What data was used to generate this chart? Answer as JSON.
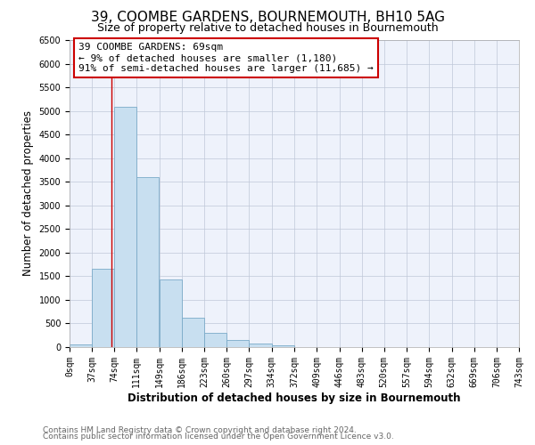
{
  "title": "39, COOMBE GARDENS, BOURNEMOUTH, BH10 5AG",
  "subtitle": "Size of property relative to detached houses in Bournemouth",
  "xlabel": "Distribution of detached houses by size in Bournemouth",
  "ylabel": "Number of detached properties",
  "footnote1": "Contains HM Land Registry data © Crown copyright and database right 2024.",
  "footnote2": "Contains public sector information licensed under the Open Government Licence v3.0.",
  "bar_left_edges": [
    0,
    37,
    74,
    111,
    149,
    186,
    223,
    260,
    297,
    334,
    372,
    409,
    446,
    483,
    520,
    557,
    594,
    632,
    669,
    706
  ],
  "bar_heights": [
    60,
    1650,
    5080,
    3600,
    1430,
    620,
    300,
    150,
    70,
    30,
    0,
    0,
    0,
    0,
    0,
    0,
    0,
    0,
    0,
    0
  ],
  "bin_width": 37,
  "bar_color": "#c8dff0",
  "bar_edge_color": "#7aaac8",
  "background_color": "#ffffff",
  "plot_bg_color": "#eef2fb",
  "annotation_text": "39 COOMBE GARDENS: 69sqm\n← 9% of detached houses are smaller (1,180)\n91% of semi-detached houses are larger (11,685) →",
  "annotation_box_color": "#ffffff",
  "annotation_box_edge_color": "#cc0000",
  "marker_x": 69,
  "marker_color": "#cc0000",
  "xlim": [
    0,
    743
  ],
  "ylim": [
    0,
    6500
  ],
  "yticks": [
    0,
    500,
    1000,
    1500,
    2000,
    2500,
    3000,
    3500,
    4000,
    4500,
    5000,
    5500,
    6000,
    6500
  ],
  "xtick_positions": [
    0,
    37,
    74,
    111,
    149,
    186,
    223,
    260,
    297,
    334,
    372,
    409,
    446,
    483,
    520,
    557,
    594,
    632,
    669,
    706,
    743
  ],
  "xtick_labels": [
    "0sqm",
    "37sqm",
    "74sqm",
    "111sqm",
    "149sqm",
    "186sqm",
    "223sqm",
    "260sqm",
    "297sqm",
    "334sqm",
    "372sqm",
    "409sqm",
    "446sqm",
    "483sqm",
    "520sqm",
    "557sqm",
    "594sqm",
    "632sqm",
    "669sqm",
    "706sqm",
    "743sqm"
  ],
  "title_fontsize": 11,
  "subtitle_fontsize": 9,
  "axis_label_fontsize": 8.5,
  "tick_fontsize": 7,
  "footnote_fontsize": 6.5,
  "annotation_fontsize": 8
}
